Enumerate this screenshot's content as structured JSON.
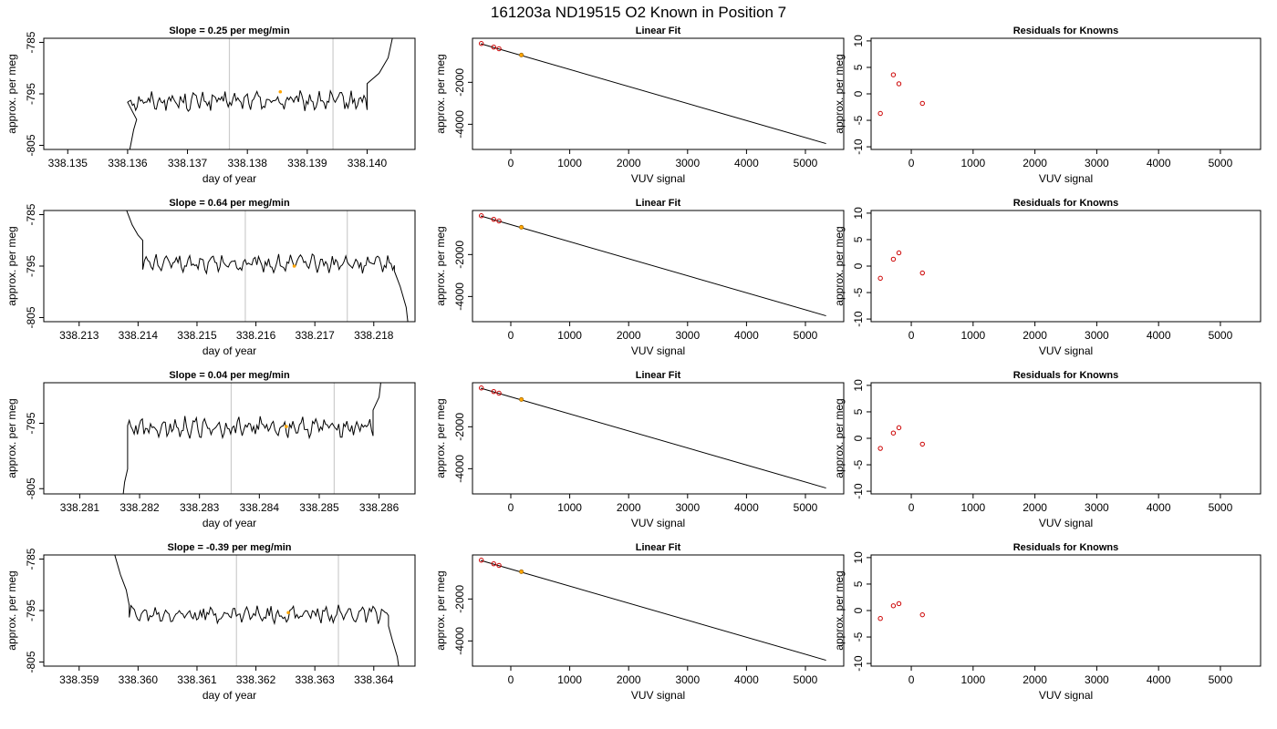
{
  "figure": {
    "title": "161203a     ND19515   O2 Known in Position  7"
  },
  "colors": {
    "line": "#000000",
    "vline": "#cccccc",
    "highlight": "#ffa500",
    "known_point": "#cc0000",
    "frame": "#000000"
  },
  "chart_data": [
    {
      "type": "line",
      "title": "Slope =  0.25  per meg/min",
      "xlabel": "day of year",
      "ylabel": "approx. per meg",
      "xlim": [
        338.1346,
        338.1408
      ],
      "ylim": [
        -805.8,
        -784.2
      ],
      "xticks": [
        {
          "v": 338.135,
          "l": "338.135"
        },
        {
          "v": 338.136,
          "l": "338.136"
        },
        {
          "v": 338.137,
          "l": "338.137"
        },
        {
          "v": 338.138,
          "l": "338.138"
        },
        {
          "v": 338.139,
          "l": "338.139"
        },
        {
          "v": 338.14,
          "l": "338.140"
        }
      ],
      "yticks": [
        {
          "v": -805,
          "l": "-805"
        },
        {
          "v": -795,
          "l": "-795"
        },
        {
          "v": -785,
          "l": "-785"
        }
      ],
      "vlines": [
        338.1377,
        338.13943
      ],
      "series": [
        {
          "x_start": 338.136,
          "x_end": 338.14,
          "lead": [
            [
              338.136,
              -808
            ],
            [
              338.13605,
              -805
            ],
            [
              338.1361,
              -802
            ],
            [
              338.13615,
              -800
            ]
          ],
          "trail": [
            [
              338.14,
              -793
            ],
            [
              338.1402,
              -791
            ],
            [
              338.14035,
              -788
            ],
            [
              338.1405,
              -780
            ]
          ],
          "level": -796.4,
          "amplitude": 1.6
        }
      ],
      "highlight_point": [
        338.13855,
        -794.6
      ]
    },
    {
      "type": "scatter",
      "title": "Linear Fit",
      "xlabel": "VUV signal",
      "ylabel": "approx. per meg",
      "xlim": [
        -650,
        5650
      ],
      "ylim": [
        -5200,
        100
      ],
      "xticks": [
        {
          "v": 0,
          "l": "0"
        },
        {
          "v": 1000,
          "l": "1000"
        },
        {
          "v": 2000,
          "l": "2000"
        },
        {
          "v": 3000,
          "l": "3000"
        },
        {
          "v": 4000,
          "l": "4000"
        },
        {
          "v": 5000,
          "l": "5000"
        }
      ],
      "yticks": [
        {
          "v": -4000,
          "l": "-4000"
        },
        {
          "v": -2000,
          "l": "-2000"
        }
      ],
      "fit_line": [
        [
          -510,
          -160
        ],
        [
          5350,
          -4920
        ]
      ],
      "points": [
        [
          -500,
          -150
        ],
        [
          -290,
          -320
        ],
        [
          -200,
          -400
        ]
      ],
      "highlight_point": [
        180,
        -700
      ]
    },
    {
      "type": "scatter",
      "title": "Residuals for Knowns",
      "xlabel": "VUV signal",
      "ylabel": "approx. per meg",
      "xlim": [
        -650,
        5650
      ],
      "ylim": [
        -10.5,
        10.5
      ],
      "xticks": [
        {
          "v": 0,
          "l": "0"
        },
        {
          "v": 1000,
          "l": "1000"
        },
        {
          "v": 2000,
          "l": "2000"
        },
        {
          "v": 3000,
          "l": "3000"
        },
        {
          "v": 4000,
          "l": "4000"
        },
        {
          "v": 5000,
          "l": "5000"
        }
      ],
      "yticks": [
        {
          "v": -10,
          "l": "-10"
        },
        {
          "v": -5,
          "l": "-5"
        },
        {
          "v": 0,
          "l": "0"
        },
        {
          "v": 5,
          "l": "5"
        },
        {
          "v": 10,
          "l": "10"
        }
      ],
      "points": [
        [
          -500,
          -3.7
        ],
        [
          -290,
          3.6
        ],
        [
          -200,
          1.9
        ],
        [
          180,
          -1.8
        ]
      ]
    },
    {
      "type": "line",
      "title": "Slope =  0.64  per meg/min",
      "xlabel": "day of year",
      "ylabel": "approx. per meg",
      "xlim": [
        338.2124,
        338.2187
      ],
      "ylim": [
        -805.8,
        -784.2
      ],
      "xticks": [
        {
          "v": 338.213,
          "l": "338.213"
        },
        {
          "v": 338.214,
          "l": "338.214"
        },
        {
          "v": 338.215,
          "l": "338.215"
        },
        {
          "v": 338.216,
          "l": "338.216"
        },
        {
          "v": 338.217,
          "l": "338.217"
        },
        {
          "v": 338.218,
          "l": "338.218"
        }
      ],
      "yticks": [
        {
          "v": -805,
          "l": "-805"
        },
        {
          "v": -795,
          "l": "-795"
        },
        {
          "v": -785,
          "l": "-785"
        }
      ],
      "vlines": [
        338.21582,
        338.21755
      ],
      "series": [
        {
          "x_start": 338.21408,
          "x_end": 338.21835,
          "lead": [
            [
              338.2138,
              -784
            ],
            [
              338.2139,
              -787
            ],
            [
              338.214,
              -789
            ],
            [
              338.21408,
              -790
            ]
          ],
          "trail": [
            [
              338.21835,
              -796
            ],
            [
              338.21845,
              -799
            ],
            [
              338.21855,
              -803
            ],
            [
              338.2186,
              -808
            ]
          ],
          "level": -794.5,
          "amplitude": 1.5
        }
      ],
      "highlight_point": [
        338.21665,
        -795.0
      ]
    },
    {
      "type": "scatter",
      "title": "Linear Fit",
      "xlabel": "VUV signal",
      "ylabel": "approx. per meg",
      "xlim": [
        -650,
        5650
      ],
      "ylim": [
        -5200,
        100
      ],
      "xticks": [
        {
          "v": 0,
          "l": "0"
        },
        {
          "v": 1000,
          "l": "1000"
        },
        {
          "v": 2000,
          "l": "2000"
        },
        {
          "v": 3000,
          "l": "3000"
        },
        {
          "v": 4000,
          "l": "4000"
        },
        {
          "v": 5000,
          "l": "5000"
        }
      ],
      "yticks": [
        {
          "v": -4000,
          "l": "-4000"
        },
        {
          "v": -2000,
          "l": "-2000"
        }
      ],
      "fit_line": [
        [
          -510,
          -160
        ],
        [
          5350,
          -4920
        ]
      ],
      "points": [
        [
          -500,
          -150
        ],
        [
          -290,
          -320
        ],
        [
          -200,
          -400
        ]
      ],
      "highlight_point": [
        180,
        -700
      ]
    },
    {
      "type": "scatter",
      "title": "Residuals for Knowns",
      "xlabel": "VUV signal",
      "ylabel": "approx. per meg",
      "xlim": [
        -650,
        5650
      ],
      "ylim": [
        -10.5,
        10.5
      ],
      "xticks": [
        {
          "v": 0,
          "l": "0"
        },
        {
          "v": 1000,
          "l": "1000"
        },
        {
          "v": 2000,
          "l": "2000"
        },
        {
          "v": 3000,
          "l": "3000"
        },
        {
          "v": 4000,
          "l": "4000"
        },
        {
          "v": 5000,
          "l": "5000"
        }
      ],
      "yticks": [
        {
          "v": -10,
          "l": "-10"
        },
        {
          "v": -5,
          "l": "-5"
        },
        {
          "v": 0,
          "l": "0"
        },
        {
          "v": 5,
          "l": "5"
        },
        {
          "v": 10,
          "l": "10"
        }
      ],
      "points": [
        [
          -500,
          -2.3
        ],
        [
          -290,
          1.3
        ],
        [
          -200,
          2.5
        ],
        [
          180,
          -1.3
        ]
      ]
    },
    {
      "type": "line",
      "title": "Slope =  0.04  per meg/min",
      "xlabel": "day of year",
      "ylabel": "approx. per meg",
      "xlim": [
        338.2804,
        338.2866
      ],
      "ylim": [
        -805.8,
        -788.8
      ],
      "xticks": [
        {
          "v": 338.281,
          "l": "338.281"
        },
        {
          "v": 338.282,
          "l": "338.282"
        },
        {
          "v": 338.283,
          "l": "338.283"
        },
        {
          "v": 338.284,
          "l": "338.284"
        },
        {
          "v": 338.285,
          "l": "338.285"
        },
        {
          "v": 338.286,
          "l": "338.286"
        }
      ],
      "yticks": [
        {
          "v": -805,
          "l": "-805"
        },
        {
          "v": -795,
          "l": "-795"
        }
      ],
      "vlines": [
        338.28353,
        338.28525
      ],
      "series": [
        {
          "x_start": 338.2818,
          "x_end": 338.2859,
          "lead": [
            [
              338.2817,
              -808
            ],
            [
              338.28175,
              -804
            ],
            [
              338.2818,
              -802
            ]
          ],
          "trail": [
            [
              338.2859,
              -793
            ],
            [
              338.286,
              -791
            ],
            [
              338.28605,
              -787
            ]
          ],
          "level": -795.6,
          "amplitude": 1.3
        }
      ],
      "highlight_point": [
        338.28445,
        -795.5
      ]
    },
    {
      "type": "scatter",
      "title": "Linear Fit",
      "xlabel": "VUV signal",
      "ylabel": "approx. per meg",
      "xlim": [
        -650,
        5650
      ],
      "ylim": [
        -5200,
        100
      ],
      "xticks": [
        {
          "v": 0,
          "l": "0"
        },
        {
          "v": 1000,
          "l": "1000"
        },
        {
          "v": 2000,
          "l": "2000"
        },
        {
          "v": 3000,
          "l": "3000"
        },
        {
          "v": 4000,
          "l": "4000"
        },
        {
          "v": 5000,
          "l": "5000"
        }
      ],
      "yticks": [
        {
          "v": -4000,
          "l": "-4000"
        },
        {
          "v": -2000,
          "l": "-2000"
        }
      ],
      "fit_line": [
        [
          -510,
          -160
        ],
        [
          5350,
          -4920
        ]
      ],
      "points": [
        [
          -500,
          -150
        ],
        [
          -290,
          -320
        ],
        [
          -200,
          -400
        ]
      ],
      "highlight_point": [
        180,
        -700
      ]
    },
    {
      "type": "scatter",
      "title": "Residuals for Knowns",
      "xlabel": "VUV signal",
      "ylabel": "approx. per meg",
      "xlim": [
        -650,
        5650
      ],
      "ylim": [
        -10.5,
        10.5
      ],
      "xticks": [
        {
          "v": 0,
          "l": "0"
        },
        {
          "v": 1000,
          "l": "1000"
        },
        {
          "v": 2000,
          "l": "2000"
        },
        {
          "v": 3000,
          "l": "3000"
        },
        {
          "v": 4000,
          "l": "4000"
        },
        {
          "v": 5000,
          "l": "5000"
        }
      ],
      "yticks": [
        {
          "v": -10,
          "l": "-10"
        },
        {
          "v": -5,
          "l": "-5"
        },
        {
          "v": 0,
          "l": "0"
        },
        {
          "v": 5,
          "l": "5"
        },
        {
          "v": 10,
          "l": "10"
        }
      ],
      "points": [
        [
          -500,
          -1.9
        ],
        [
          -290,
          1.0
        ],
        [
          -200,
          2.0
        ],
        [
          180,
          -1.1
        ]
      ]
    },
    {
      "type": "line",
      "title": "Slope =  -0.39  per meg/min",
      "xlabel": "day of year",
      "ylabel": "approx. per meg",
      "xlim": [
        338.3584,
        338.3647
      ],
      "ylim": [
        -805.8,
        -784.2
      ],
      "xticks": [
        {
          "v": 338.359,
          "l": "338.359"
        },
        {
          "v": 338.36,
          "l": "338.360"
        },
        {
          "v": 338.361,
          "l": "338.361"
        },
        {
          "v": 338.362,
          "l": "338.362"
        },
        {
          "v": 338.363,
          "l": "338.363"
        },
        {
          "v": 338.364,
          "l": "338.364"
        }
      ],
      "yticks": [
        {
          "v": -805,
          "l": "-805"
        },
        {
          "v": -795,
          "l": "-795"
        },
        {
          "v": -785,
          "l": "-785"
        }
      ],
      "vlines": [
        338.36167,
        338.3634
      ],
      "series": [
        {
          "x_start": 338.35985,
          "x_end": 338.36425,
          "lead": [
            [
              338.3596,
              -784
            ],
            [
              338.3597,
              -788
            ],
            [
              338.3598,
              -791
            ],
            [
              338.35985,
              -794
            ]
          ],
          "trail": [
            [
              338.36425,
              -798
            ],
            [
              338.36432,
              -801
            ],
            [
              338.3644,
              -804
            ],
            [
              338.36445,
              -808
            ]
          ],
          "level": -795.7,
          "amplitude": 1.4
        }
      ],
      "highlight_point": [
        338.36255,
        -795.4
      ]
    },
    {
      "type": "scatter",
      "title": "Linear Fit",
      "xlabel": "VUV signal",
      "ylabel": "approx. per meg",
      "xlim": [
        -650,
        5650
      ],
      "ylim": [
        -5200,
        100
      ],
      "xticks": [
        {
          "v": 0,
          "l": "0"
        },
        {
          "v": 1000,
          "l": "1000"
        },
        {
          "v": 2000,
          "l": "2000"
        },
        {
          "v": 3000,
          "l": "3000"
        },
        {
          "v": 4000,
          "l": "4000"
        },
        {
          "v": 5000,
          "l": "5000"
        }
      ],
      "yticks": [
        {
          "v": -4000,
          "l": "-4000"
        },
        {
          "v": -2000,
          "l": "-2000"
        }
      ],
      "fit_line": [
        [
          -510,
          -160
        ],
        [
          5350,
          -4920
        ]
      ],
      "points": [
        [
          -500,
          -150
        ],
        [
          -290,
          -320
        ],
        [
          -200,
          -400
        ]
      ],
      "highlight_point": [
        180,
        -700
      ]
    },
    {
      "type": "scatter",
      "title": "Residuals for Knowns",
      "xlabel": "VUV signal",
      "ylabel": "approx. per meg",
      "xlim": [
        -650,
        5650
      ],
      "ylim": [
        -10.5,
        10.5
      ],
      "xticks": [
        {
          "v": 0,
          "l": "0"
        },
        {
          "v": 1000,
          "l": "1000"
        },
        {
          "v": 2000,
          "l": "2000"
        },
        {
          "v": 3000,
          "l": "3000"
        },
        {
          "v": 4000,
          "l": "4000"
        },
        {
          "v": 5000,
          "l": "5000"
        }
      ],
      "yticks": [
        {
          "v": -10,
          "l": "-10"
        },
        {
          "v": -5,
          "l": "-5"
        },
        {
          "v": 0,
          "l": "0"
        },
        {
          "v": 5,
          "l": "5"
        },
        {
          "v": 10,
          "l": "10"
        }
      ],
      "points": [
        [
          -500,
          -1.5
        ],
        [
          -290,
          0.9
        ],
        [
          -200,
          1.3
        ],
        [
          180,
          -0.8
        ]
      ]
    }
  ]
}
